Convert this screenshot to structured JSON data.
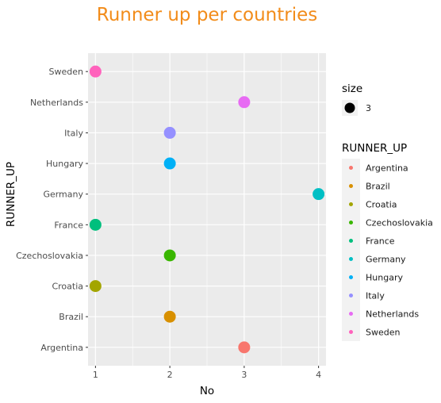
{
  "chart_data": {
    "type": "scatter",
    "title": "Runner up per countries",
    "xlabel": "No",
    "ylabel": "RUNNER_UP",
    "xlim": [
      0.9,
      4.1
    ],
    "x_ticks": [
      "1",
      "2",
      "3",
      "4"
    ],
    "categories": [
      "Argentina",
      "Brazil",
      "Croatia",
      "Czechoslovakia",
      "France",
      "Germany",
      "Hungary",
      "Italy",
      "Netherlands",
      "Sweden"
    ],
    "points": [
      {
        "category": "Argentina",
        "x": 3,
        "color": "#F8766D"
      },
      {
        "category": "Brazil",
        "x": 2,
        "color": "#D89000"
      },
      {
        "category": "Croatia",
        "x": 1,
        "color": "#A3A500"
      },
      {
        "category": "Czechoslovakia",
        "x": 2,
        "color": "#39B600"
      },
      {
        "category": "France",
        "x": 1,
        "color": "#00BF7D"
      },
      {
        "category": "Germany",
        "x": 4,
        "color": "#00BFC4"
      },
      {
        "category": "Hungary",
        "x": 2,
        "color": "#00B0F6"
      },
      {
        "category": "Italy",
        "x": 2,
        "color": "#9590FF"
      },
      {
        "category": "Netherlands",
        "x": 3,
        "color": "#E76BF3"
      },
      {
        "category": "Sweden",
        "x": 1,
        "color": "#FF62BC"
      }
    ],
    "grid": true,
    "panel_background": "#EBEBEB",
    "legend_position": "right",
    "size_legend": {
      "title": "size",
      "label": "3"
    },
    "color_legend": {
      "title": "RUNNER_UP"
    }
  }
}
